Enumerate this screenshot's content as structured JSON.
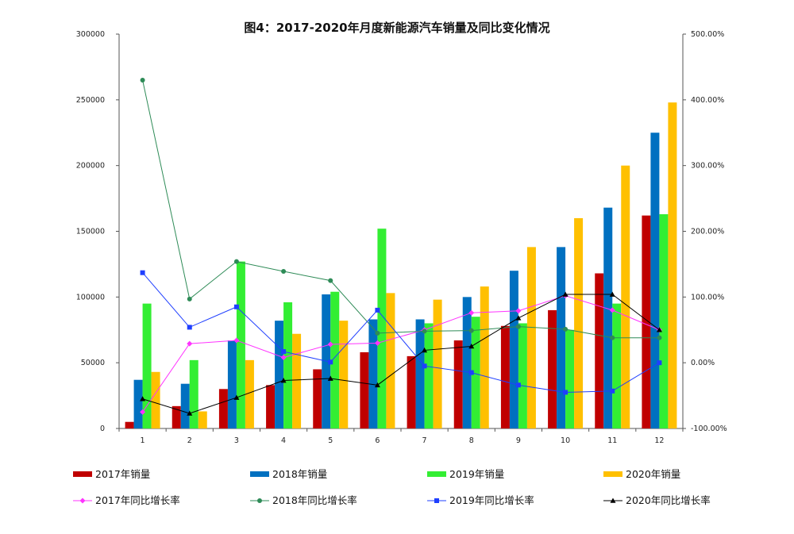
{
  "chart_data": {
    "type": "bar",
    "title": "图4：2017-2020年月度新能源汽车销量及同比变化情况",
    "categories": [
      "1",
      "2",
      "3",
      "4",
      "5",
      "6",
      "7",
      "8",
      "9",
      "10",
      "11",
      "12"
    ],
    "ylim": [
      0,
      300000
    ],
    "y_ticks": [
      "0",
      "50000",
      "100000",
      "150000",
      "200000",
      "250000",
      "300000"
    ],
    "y2lim": [
      -1.0,
      5.0
    ],
    "y2_ticks": [
      "-100.00%",
      "0.00%",
      "100.00%",
      "200.00%",
      "300.00%",
      "400.00%",
      "500.00%"
    ],
    "grid": false,
    "legend_position": "bottom",
    "bar_series": [
      {
        "name": "2017年销量",
        "color": "#C00000",
        "values": [
          5000,
          17000,
          30000,
          33000,
          45000,
          58000,
          55000,
          67000,
          78000,
          90000,
          118000,
          162000
        ]
      },
      {
        "name": "2018年销量",
        "color": "#0070C0",
        "values": [
          37000,
          34000,
          67000,
          82000,
          102000,
          83000,
          83000,
          100000,
          120000,
          138000,
          168000,
          225000
        ]
      },
      {
        "name": "2019年销量",
        "color": "#33EE33",
        "values": [
          95000,
          52000,
          127000,
          96000,
          104000,
          152000,
          80000,
          85000,
          80000,
          75000,
          95000,
          163000
        ]
      },
      {
        "name": "2020年销量",
        "color": "#FFC000",
        "values": [
          43000,
          13000,
          52000,
          72000,
          82000,
          103000,
          98000,
          108000,
          138000,
          160000,
          200000,
          248000
        ]
      }
    ],
    "line_series": [
      {
        "name": "2017年同比增长率",
        "color": "#FF33FF",
        "marker": "diamond",
        "values": [
          -0.75,
          0.29,
          0.34,
          0.08,
          0.28,
          0.3,
          0.5,
          0.76,
          0.79,
          1.02,
          0.8,
          0.5
        ]
      },
      {
        "name": "2018年同比增长率",
        "color": "#2E8B57",
        "marker": "circle",
        "values": [
          4.3,
          0.97,
          1.54,
          1.39,
          1.25,
          0.45,
          0.48,
          0.49,
          0.55,
          0.51,
          0.38,
          0.38
        ]
      },
      {
        "name": "2019年同比增长率",
        "color": "#1F3FFF",
        "marker": "square",
        "values": [
          1.37,
          0.54,
          0.85,
          0.17,
          0.01,
          0.8,
          -0.05,
          -0.15,
          -0.34,
          -0.45,
          -0.43,
          0.0
        ]
      },
      {
        "name": "2020年同比增长率",
        "color": "#000000",
        "marker": "triangle",
        "values": [
          -0.55,
          -0.77,
          -0.53,
          -0.27,
          -0.24,
          -0.34,
          0.19,
          0.25,
          0.68,
          1.04,
          1.04,
          0.5
        ]
      }
    ]
  }
}
